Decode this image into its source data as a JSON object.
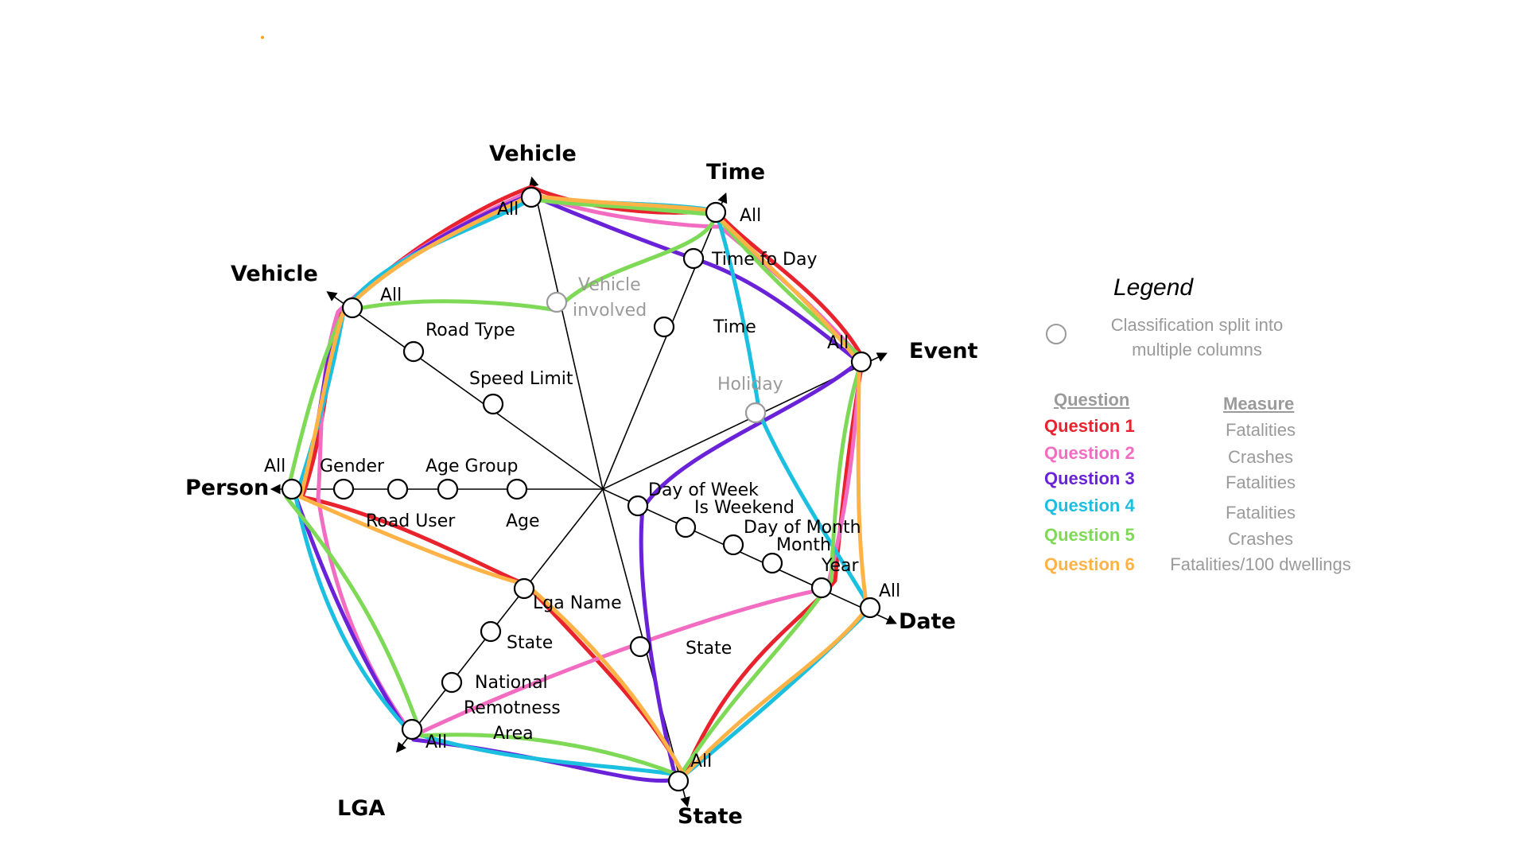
{
  "axes": [
    {
      "title": "Vehicle",
      "levels": [
        "All",
        "Vehicle involved"
      ],
      "muted": [
        false,
        true
      ]
    },
    {
      "title": "Time",
      "levels": [
        "All",
        "Time fo Day",
        "Time",
        "Holiday"
      ],
      "muted": [
        false,
        false,
        false,
        true
      ]
    },
    {
      "title": "Event",
      "levels": [
        "All"
      ],
      "muted": [
        false
      ]
    },
    {
      "title": "Date",
      "levels": [
        "All",
        "Year",
        "Month",
        "Day of Month",
        "Is Weekend",
        "Day of Week"
      ],
      "muted": [
        false,
        false,
        false,
        false,
        false,
        false
      ]
    },
    {
      "title": "State",
      "levels": [
        "All",
        "State"
      ],
      "muted": [
        false,
        false
      ]
    },
    {
      "title": "LGA",
      "levels": [
        "All",
        "National Remotness Area",
        "State",
        "Lga Name"
      ],
      "muted": [
        false,
        false,
        false,
        false
      ]
    },
    {
      "title": "Person",
      "levels": [
        "All",
        "Gender",
        "Road User",
        "Age Group",
        "Age"
      ],
      "muted": [
        false,
        false,
        false,
        false,
        false
      ]
    },
    {
      "title": "Vehicle",
      "levels": [
        "All",
        "Road Type",
        "Speed Limit"
      ],
      "muted": [
        false,
        false,
        false
      ]
    }
  ],
  "legend": {
    "title": "Legend",
    "key_text": "Classification split into multiple columns",
    "question_header": "Question",
    "measure_header": "Measure",
    "entries": [
      {
        "question": "Question 1",
        "measure": "Fatalities",
        "color": "#e8232e"
      },
      {
        "question": "Question 2",
        "measure": "Crashes",
        "color": "#f26dc2"
      },
      {
        "question": "Question 3",
        "measure": "Fatalities",
        "color": "#6a22d8"
      },
      {
        "question": "Question 4",
        "measure": "Fatalities",
        "color": "#1bbfe0"
      },
      {
        "question": "Question 5",
        "measure": "Crashes",
        "color": "#7ed957"
      },
      {
        "question": "Question 6",
        "measure": "Fatalities/100 dwellings",
        "color": "#ffb347"
      }
    ]
  },
  "colors": {
    "axis": "#000000",
    "muted": "#9a9a9a",
    "stray_dot": "#f5a623"
  },
  "icons": [
    "axis-arrow-icon",
    "level-node-icon",
    "legend-circle-icon"
  ]
}
